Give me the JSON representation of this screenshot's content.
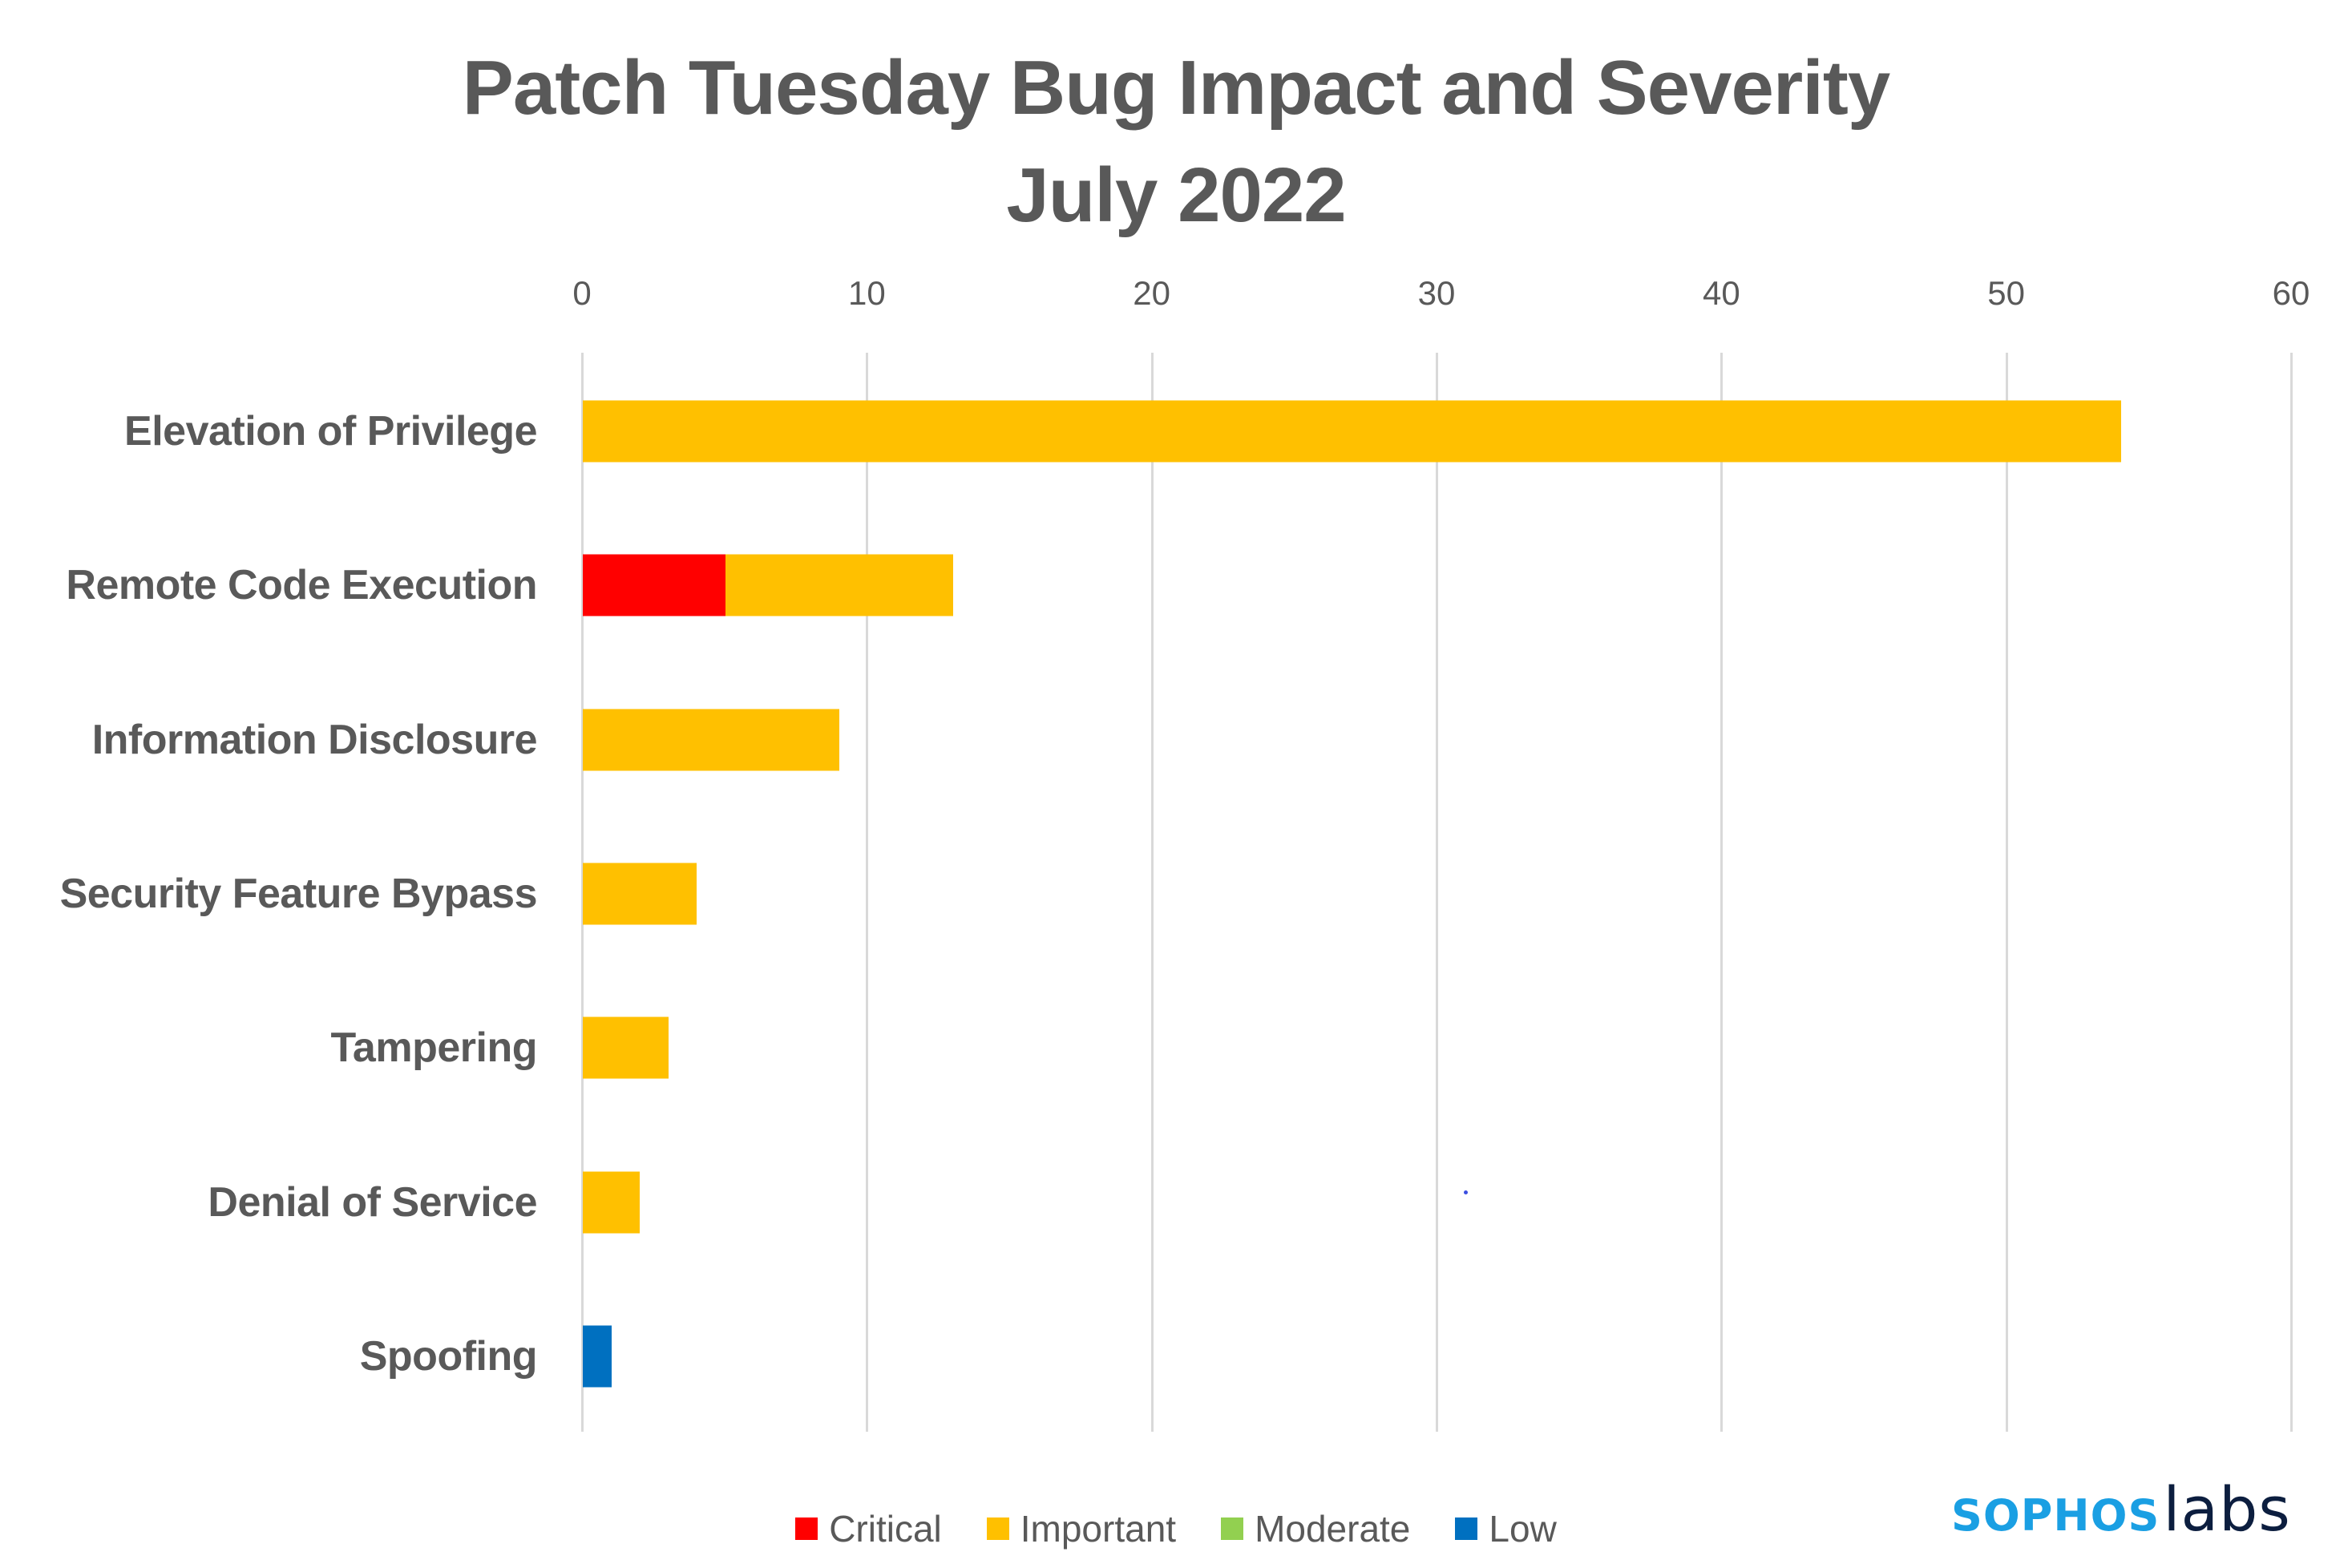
{
  "chart_data": {
    "type": "bar",
    "orientation": "horizontal",
    "stacked": true,
    "title": "Patch Tuesday Bug Impact and Severity",
    "subtitle": "July 2022",
    "xlabel": "",
    "ylabel": "",
    "xlim": [
      0,
      60
    ],
    "x_ticks": [
      0,
      10,
      20,
      30,
      40,
      50,
      60
    ],
    "x_axis_position": "top",
    "grid": true,
    "legend_position": "bottom",
    "categories": [
      "Elevation of Privilege",
      "Remote Code Execution",
      "Information Disclosure",
      "Security Feature Bypass",
      "Tampering",
      "Denial of Service",
      "Spoofing"
    ],
    "series": [
      {
        "name": "Critical",
        "color": "#ff0000",
        "values": [
          0,
          5,
          0,
          0,
          0,
          0,
          0
        ]
      },
      {
        "name": "Important",
        "color": "#ffc000",
        "values": [
          54,
          8,
          9,
          4,
          3,
          2,
          0
        ]
      },
      {
        "name": "Moderate",
        "color": "#92d050",
        "values": [
          0,
          0,
          0,
          0,
          0,
          0,
          0
        ]
      },
      {
        "name": "Low",
        "color": "#0070c0",
        "values": [
          0,
          0,
          0,
          0,
          0,
          0,
          1
        ]
      }
    ],
    "totals": [
      54,
      13,
      9,
      4,
      3,
      2,
      1
    ]
  },
  "header": {
    "title_line1": "Patch Tuesday Bug Impact and Severity",
    "title_line2": "July 2022"
  },
  "axis": {
    "ticks": [
      "0",
      "10",
      "20",
      "30",
      "40",
      "50",
      "60"
    ]
  },
  "legend": {
    "items": [
      {
        "label": "Critical",
        "color": "#ff0000"
      },
      {
        "label": "Important",
        "color": "#ffc000"
      },
      {
        "label": "Moderate",
        "color": "#92d050"
      },
      {
        "label": "Low",
        "color": "#0070c0"
      }
    ]
  },
  "branding": {
    "logo_part1": "SOPHOS",
    "logo_part2": "labs",
    "colors": {
      "sophos": "#1a9fe3",
      "labs": "#0c1e3f"
    }
  }
}
